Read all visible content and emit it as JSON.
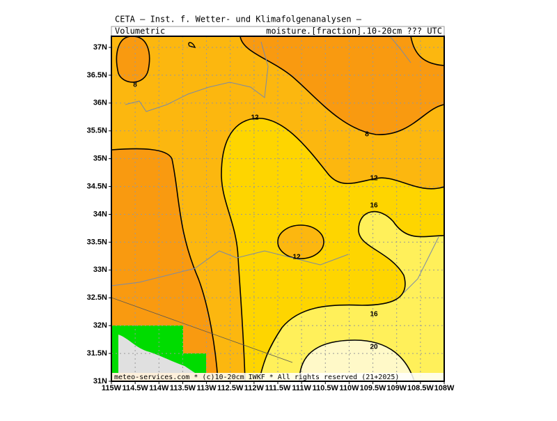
{
  "header": {
    "title": "CETA – Inst. f. Wetter- und Klimafolgenanalysen –",
    "left": "Volumetric",
    "right": "moisture.[fraction].10-20cm ??? UTC"
  },
  "lat_labels": [
    "37N",
    "36.5N",
    "36N",
    "35.5N",
    "35N",
    "34.5N",
    "34N",
    "33.5N",
    "33N",
    "32.5N",
    "32N",
    "31.5N",
    "31N"
  ],
  "lon_labels": [
    "115W",
    "114.5W",
    "114W",
    "113.5W",
    "113W",
    "112.5W",
    "112W",
    "111.5W",
    "111W",
    "110.5W",
    "110W",
    "109.5W",
    "109W",
    "108.5W",
    "108W"
  ],
  "contour_labels": [
    8,
    12,
    8,
    12,
    16,
    12,
    16,
    20
  ],
  "footer": "meteo-services.com * (c)10-20cm IWKF * All rights reserved (21+2025)"
}
